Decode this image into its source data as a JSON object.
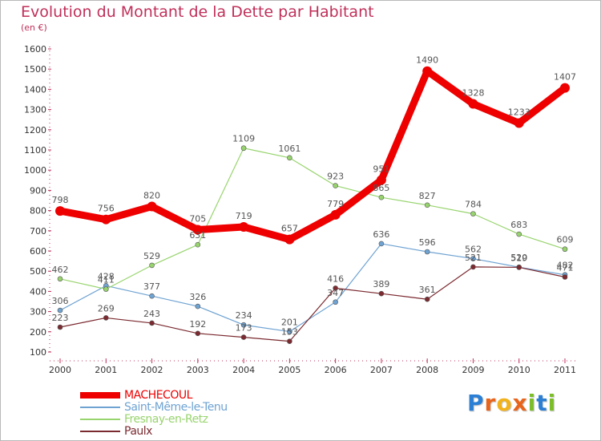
{
  "title": "Evolution du Montant de la Dette par Habitant",
  "subtitle": "(en €)",
  "logo": {
    "text": "Proxiti",
    "letters": [
      {
        "ch": "P",
        "color": "#2b7fd4"
      },
      {
        "ch": "r",
        "color": "#e8641b"
      },
      {
        "ch": "o",
        "color": "#f2b21b"
      },
      {
        "ch": "x",
        "color": "#e8641b"
      },
      {
        "ch": "i",
        "color": "#7cbd2a"
      },
      {
        "ch": "t",
        "color": "#2b7fd4"
      },
      {
        "ch": "i",
        "color": "#7cbd2a"
      }
    ]
  },
  "chart_data": {
    "type": "line",
    "x": [
      "2000",
      "2001",
      "2002",
      "2003",
      "2004",
      "2005",
      "2006",
      "2007",
      "2008",
      "2009",
      "2010",
      "2011"
    ],
    "ylim": [
      100,
      1600
    ],
    "yticks": [
      100,
      200,
      300,
      400,
      500,
      600,
      700,
      800,
      900,
      1000,
      1100,
      1200,
      1300,
      1400,
      1500,
      1600
    ],
    "grid": false,
    "legend": "bottom",
    "series": [
      {
        "name": "MACHECOUL",
        "color": "#ee0000",
        "values": [
          798,
          756,
          820,
          705,
          719,
          657,
          779,
          951,
          1490,
          1328,
          1233,
          1407
        ]
      },
      {
        "name": "Saint-Même-le-Tenu",
        "color": "#6fa3d2",
        "values": [
          306,
          428,
          377,
          326,
          234,
          201,
          347,
          636,
          596,
          562,
          520,
          482
        ]
      },
      {
        "name": "Fresnay-en-Retz",
        "color": "#98d46e",
        "values": [
          462,
          411,
          529,
          631,
          1109,
          1061,
          923,
          865,
          827,
          784,
          683,
          609
        ]
      },
      {
        "name": "Paulx",
        "color": "#7b2a30",
        "values": [
          223,
          269,
          243,
          192,
          173,
          153,
          416,
          389,
          361,
          521,
          519,
          471
        ]
      }
    ]
  }
}
